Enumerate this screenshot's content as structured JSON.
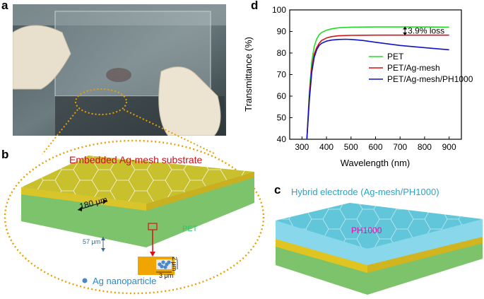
{
  "panels": {
    "a": {
      "letter": "a"
    },
    "b": {
      "letter": "b",
      "title": "Embedded Ag-mesh substrate",
      "pitch": "180 μm",
      "thickness": "57 μm",
      "substrate": "PET",
      "inset_height": "2 μm",
      "inset_width": "3 μm",
      "legend": "Ag nanoparticle"
    },
    "c": {
      "letter": "c",
      "title": "Hybrid electrode (Ag-mesh/PH1000)",
      "layer": "PH1000"
    },
    "d": {
      "letter": "d"
    }
  },
  "colors": {
    "pet": "#22dd22",
    "ag_mesh": "#dd1111",
    "hybrid": "#1111cc",
    "gold": "#e8a000",
    "pink": "#dd11aa",
    "cyan": "#22aacc"
  },
  "chart_data": {
    "type": "line",
    "xlabel": "Wavelength (nm)",
    "ylabel": "Transmittance (%)",
    "xlim": [
      250,
      950
    ],
    "ylim": [
      40,
      100
    ],
    "xticks": [
      300,
      400,
      500,
      600,
      700,
      800,
      900
    ],
    "yticks": [
      40,
      50,
      60,
      70,
      80,
      90,
      100
    ],
    "legend_position": "center-right",
    "annotation": "3.9% loss",
    "series": [
      {
        "name": "PET",
        "color": "#22dd22",
        "x": [
          320,
          330,
          340,
          350,
          360,
          370,
          380,
          400,
          420,
          450,
          500,
          600,
          700,
          800,
          900
        ],
        "y": [
          40,
          62,
          76,
          83,
          86.5,
          88.5,
          89.5,
          90.6,
          91.2,
          91.7,
          92,
          92.1,
          92.1,
          92.1,
          92
        ]
      },
      {
        "name": "PET/Ag-mesh",
        "color": "#dd1111",
        "x": [
          320,
          330,
          340,
          350,
          360,
          370,
          380,
          400,
          420,
          450,
          500,
          600,
          700,
          800,
          900
        ],
        "y": [
          40,
          60,
          73,
          79.5,
          82.5,
          84.5,
          85.8,
          87,
          87.6,
          88,
          88.2,
          88.3,
          88.3,
          88.3,
          88.3
        ]
      },
      {
        "name": "PET/Ag-mesh/PH1000",
        "color": "#1111cc",
        "x": [
          320,
          330,
          340,
          350,
          360,
          370,
          380,
          400,
          420,
          450,
          480,
          500,
          550,
          600,
          700,
          800,
          900
        ],
        "y": [
          40,
          58,
          71,
          78,
          81.5,
          83.5,
          84.5,
          85.5,
          86,
          86.3,
          86.4,
          86.3,
          85.8,
          85,
          83.5,
          82.5,
          81.5
        ]
      }
    ]
  }
}
